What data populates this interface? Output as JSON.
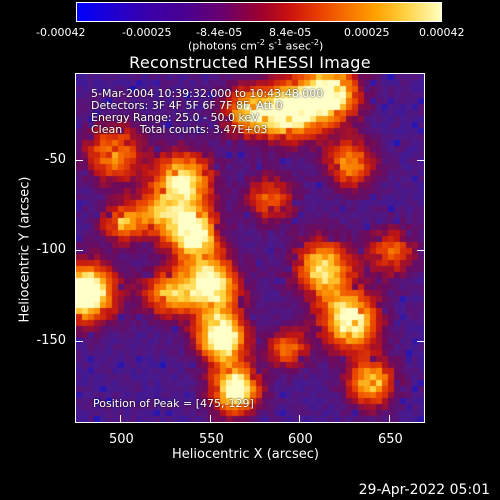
{
  "colorbar": {
    "ticks": [
      "-0.00042",
      "-0.00025",
      "-8.4e-05",
      "8.4e-05",
      "0.00025",
      "0.00042"
    ],
    "unit_main": "(photons cm",
    "unit_exp1": "-2",
    "unit_mid": " s",
    "unit_exp2": "-1",
    "unit_end": " asec",
    "unit_exp3": "-2",
    "unit_close": ")"
  },
  "plot": {
    "title": "Reconstructed RHESSI Image",
    "info_lines": [
      "5-Mar-2004 10:39:32.000 to 10:43:48.000",
      "Detectors: 3F 4F 5F 6F 7F 8F, Att 0",
      "Energy Range: 25.0 - 50.0 keV",
      "Clean     Total counts: 3.47E+03"
    ],
    "peak_label": "Position of Peak = [475,-129]",
    "x_label": "Heliocentric X (arcsec)",
    "y_label": "Heliocentric Y (arcsec)",
    "x_ticks": [
      "500",
      "550",
      "600",
      "650"
    ],
    "y_ticks": [
      "-50",
      "-100",
      "-150"
    ]
  },
  "footer": {
    "timestamp": "29-Apr-2022 05:01"
  },
  "chart_data": {
    "type": "heatmap",
    "title": "Reconstructed RHESSI Image",
    "xlabel": "Heliocentric X (arcsec)",
    "ylabel": "Heliocentric Y (arcsec)",
    "xlim": [
      475,
      670
    ],
    "ylim": [
      -195,
      -8
    ],
    "colorbar_range": [
      -0.00042,
      0.00042
    ],
    "colormap": [
      "#0000ff",
      "#4a0090",
      "#c81010",
      "#f87000",
      "#ffd040",
      "#ffffc0"
    ]
  }
}
